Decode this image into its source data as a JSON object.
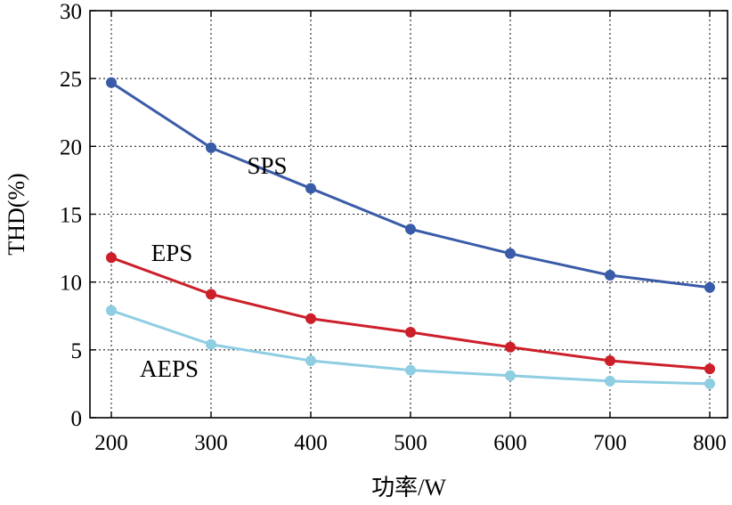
{
  "chart_data": {
    "type": "line",
    "xlabel": "功率/W",
    "ylabel": "THD(%)",
    "x": [
      200,
      300,
      400,
      500,
      600,
      700,
      800
    ],
    "xlim": [
      200,
      800
    ],
    "ylim": [
      0,
      30
    ],
    "xticks": [
      "200",
      "300",
      "400",
      "500",
      "600",
      "700",
      "800"
    ],
    "yticks": [
      "0",
      "5",
      "10",
      "15",
      "20",
      "25",
      "30"
    ],
    "grid": true,
    "grid_style": "dotted",
    "series": [
      {
        "name": "SPS",
        "color": "#3a5ba8",
        "values": [
          24.7,
          19.9,
          16.9,
          13.9,
          12.1,
          10.5,
          9.6
        ]
      },
      {
        "name": "EPS",
        "color": "#cc1f2a",
        "values": [
          11.8,
          9.1,
          7.3,
          6.3,
          5.2,
          4.2,
          3.6
        ]
      },
      {
        "name": "AEPS",
        "color": "#8ecde2",
        "values": [
          7.9,
          5.4,
          4.2,
          3.5,
          3.1,
          2.7,
          2.5
        ]
      }
    ]
  }
}
